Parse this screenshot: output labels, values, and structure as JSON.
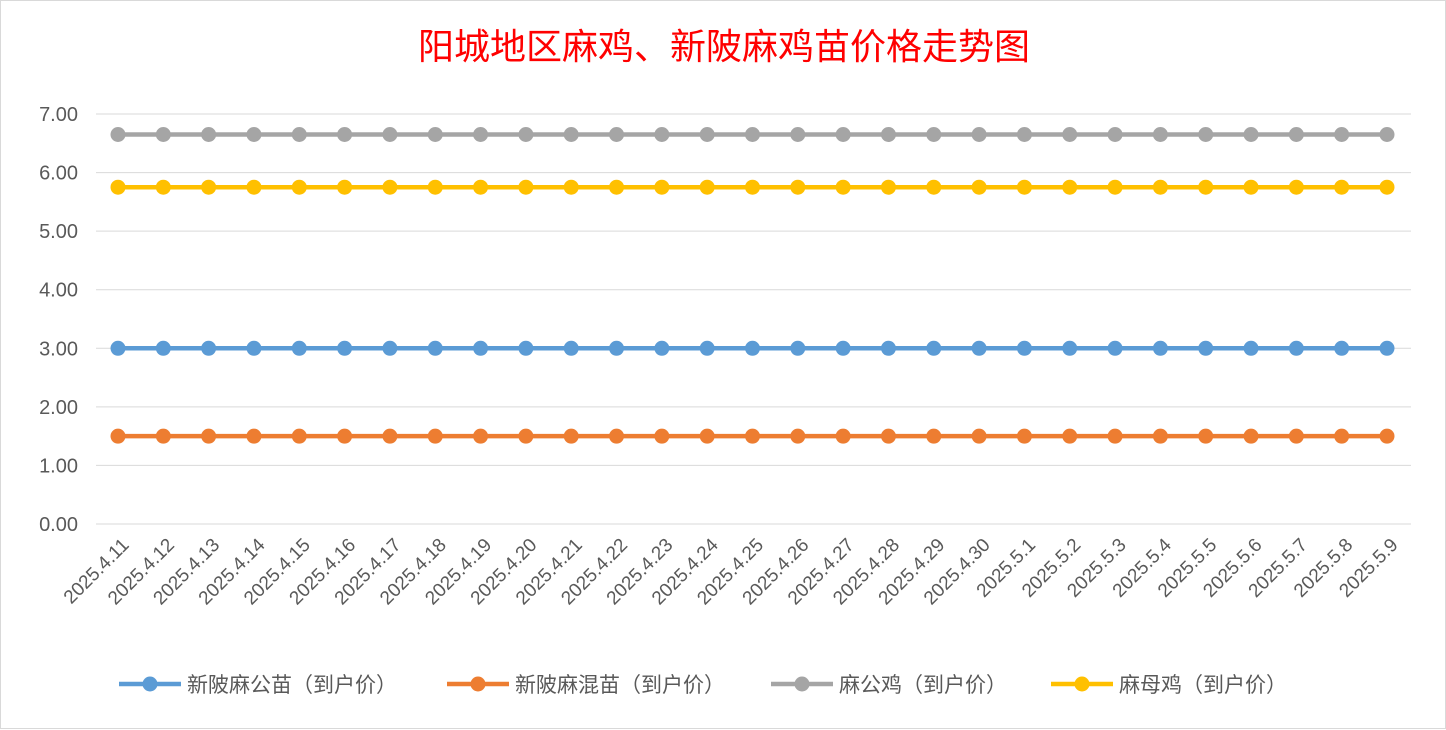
{
  "chart_data": {
    "type": "line",
    "title": "阳城地区麻鸡、新陂麻鸡苗价格走势图",
    "xlabel": "",
    "ylabel": "",
    "ylim": [
      0,
      7
    ],
    "yticks": [
      "0.00",
      "1.00",
      "2.00",
      "3.00",
      "4.00",
      "5.00",
      "6.00",
      "7.00"
    ],
    "grid": true,
    "legend_position": "bottom",
    "x": [
      "2025.4.11",
      "2025.4.12",
      "2025.4.13",
      "2025.4.14",
      "2025.4.15",
      "2025.4.16",
      "2025.4.17",
      "2025.4.18",
      "2025.4.19",
      "2025.4.20",
      "2025.4.21",
      "2025.4.22",
      "2025.4.23",
      "2025.4.24",
      "2025.4.25",
      "2025.4.26",
      "2025.4.27",
      "2025.4.28",
      "2025.4.29",
      "2025.4.30",
      "2025.5.1",
      "2025.5.2",
      "2025.5.3",
      "2025.5.4",
      "2025.5.5",
      "2025.5.6",
      "2025.5.7",
      "2025.5.8",
      "2025.5.9"
    ],
    "series": [
      {
        "name": "新陂麻公苗（到户价）",
        "color": "#5b9bd5",
        "values": [
          3.0,
          3.0,
          3.0,
          3.0,
          3.0,
          3.0,
          3.0,
          3.0,
          3.0,
          3.0,
          3.0,
          3.0,
          3.0,
          3.0,
          3.0,
          3.0,
          3.0,
          3.0,
          3.0,
          3.0,
          3.0,
          3.0,
          3.0,
          3.0,
          3.0,
          3.0,
          3.0,
          3.0,
          3.0
        ]
      },
      {
        "name": "新陂麻混苗（到户价）",
        "color": "#ed7d31",
        "values": [
          1.5,
          1.5,
          1.5,
          1.5,
          1.5,
          1.5,
          1.5,
          1.5,
          1.5,
          1.5,
          1.5,
          1.5,
          1.5,
          1.5,
          1.5,
          1.5,
          1.5,
          1.5,
          1.5,
          1.5,
          1.5,
          1.5,
          1.5,
          1.5,
          1.5,
          1.5,
          1.5,
          1.5,
          1.5
        ]
      },
      {
        "name": "麻公鸡（到户价）",
        "color": "#a5a5a5",
        "values": [
          6.65,
          6.65,
          6.65,
          6.65,
          6.65,
          6.65,
          6.65,
          6.65,
          6.65,
          6.65,
          6.65,
          6.65,
          6.65,
          6.65,
          6.65,
          6.65,
          6.65,
          6.65,
          6.65,
          6.65,
          6.65,
          6.65,
          6.65,
          6.65,
          6.65,
          6.65,
          6.65,
          6.65,
          6.65
        ]
      },
      {
        "name": "麻母鸡（到户价）",
        "color": "#ffc000",
        "values": [
          5.75,
          5.75,
          5.75,
          5.75,
          5.75,
          5.75,
          5.75,
          5.75,
          5.75,
          5.75,
          5.75,
          5.75,
          5.75,
          5.75,
          5.75,
          5.75,
          5.75,
          5.75,
          5.75,
          5.75,
          5.75,
          5.75,
          5.75,
          5.75,
          5.75,
          5.75,
          5.75,
          5.75,
          5.75
        ]
      }
    ]
  }
}
